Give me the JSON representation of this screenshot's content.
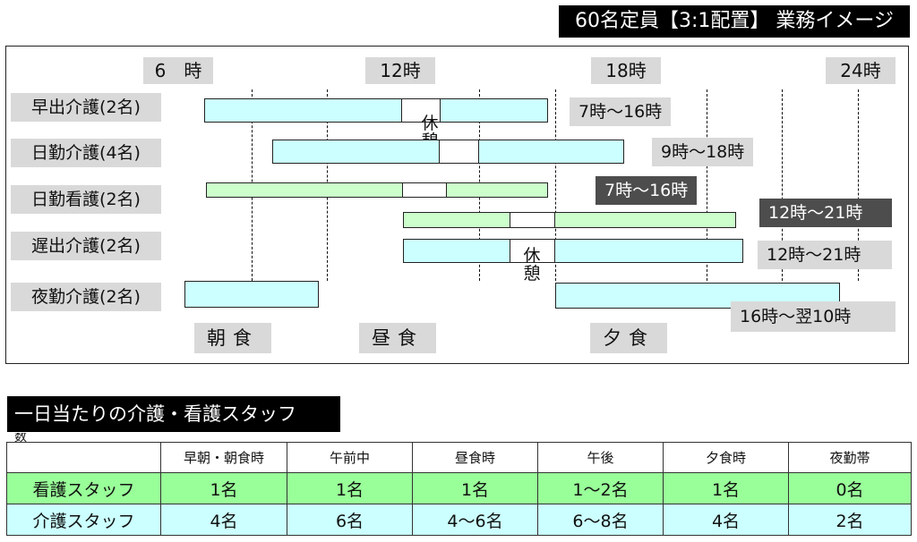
{
  "header": {
    "title": "60名定員【3:1配置】 業務イメージ"
  },
  "diagram": {
    "time_labels": [
      "6　時",
      "12時",
      "18時",
      "24時"
    ],
    "roles": [
      "早出介護(2名)",
      "日勤介護(4名)",
      "日勤看護(2名)",
      "遅出介護(2名)",
      "夜勤介護(2名)"
    ],
    "shift_times": {
      "early_care": "7時～16時",
      "day_care": "9時～18時",
      "day_nurse": "7時～16時",
      "late_nurse": "12時～21時",
      "late_care": "12時～21時",
      "night_care": "16時～翌10時"
    },
    "break_label": "休憩",
    "meals": [
      "朝食",
      "昼食",
      "夕食"
    ],
    "colors": {
      "care_bar": "#ccffff",
      "nurse_bar": "#ccffcc",
      "label_bg": "#d9d9d9",
      "dark_tag": "#4d4d4d"
    }
  },
  "staff_section": {
    "title": "一日当たりの介護・看護スタッフ",
    "stray_text": "数",
    "columns": [
      "",
      "早朝・朝食時",
      "午前中",
      "昼食時",
      "午後",
      "夕食時",
      "夜勤帯"
    ],
    "rows": [
      {
        "label": "看護スタッフ",
        "values": [
          "1名",
          "1名",
          "1名",
          "1～2名",
          "1名",
          "0名"
        ]
      },
      {
        "label": "介護スタッフ",
        "values": [
          "4名",
          "6名",
          "4～6名",
          "6～8名",
          "4名",
          "2名"
        ]
      }
    ],
    "colors": {
      "nurse_row": "#99ff99",
      "care_row": "#ccffff"
    }
  }
}
